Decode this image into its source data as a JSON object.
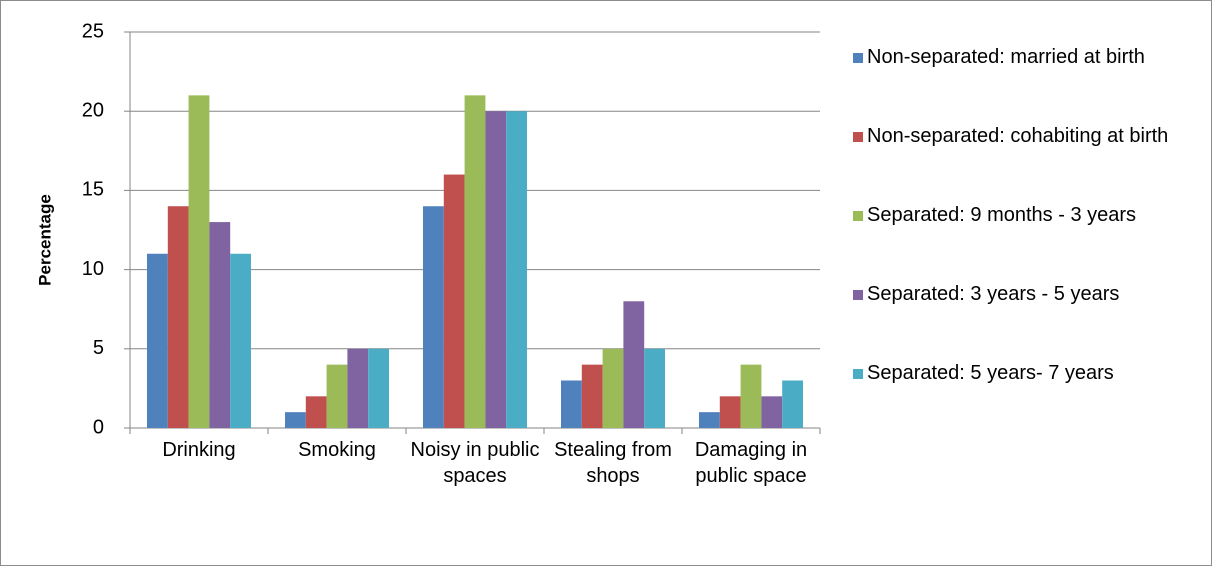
{
  "chart_data": {
    "type": "bar",
    "y_label": "Percentage",
    "categories": [
      "Drinking",
      "Smoking",
      "Noisy in public spaces",
      "Stealing from shops",
      "Damaging in public space"
    ],
    "series": [
      {
        "name": "Non-separated: married at birth",
        "color": "#4f81bd",
        "values": [
          11,
          1,
          14,
          3,
          1
        ]
      },
      {
        "name": "Non-separated: cohabiting at birth",
        "color": "#c0504d",
        "values": [
          14,
          2,
          16,
          4,
          2
        ]
      },
      {
        "name": "Separated: 9 months - 3 years",
        "color": "#9bbb59",
        "values": [
          21,
          4,
          21,
          5,
          4
        ]
      },
      {
        "name": "Separated: 3 years - 5 years",
        "color": "#8064a2",
        "values": [
          13,
          5,
          20,
          8,
          2
        ]
      },
      {
        "name": "Separated: 5 years- 7 years",
        "color": "#4bacc6",
        "values": [
          11,
          5,
          20,
          5,
          3
        ]
      }
    ],
    "ylim": [
      0,
      25
    ],
    "yticks": [
      0,
      5,
      10,
      15,
      20,
      25
    ],
    "grid": true,
    "legend": "right"
  }
}
